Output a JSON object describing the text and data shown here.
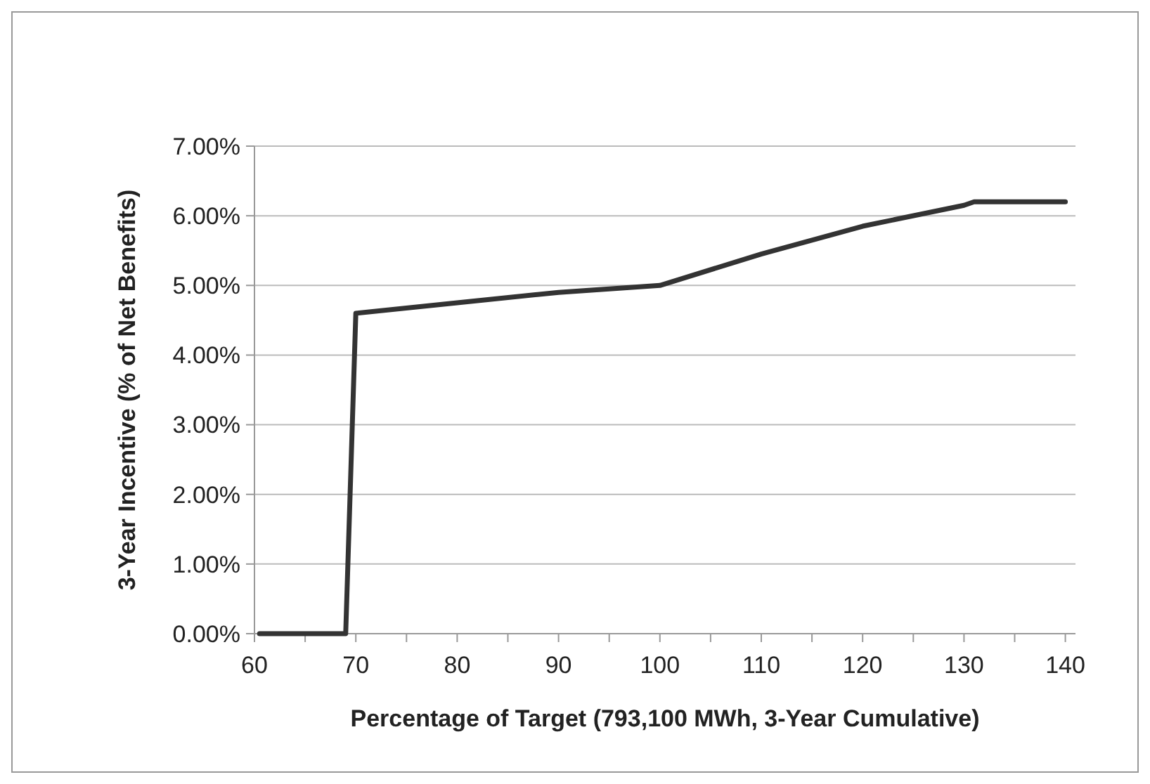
{
  "chart_data": {
    "type": "line",
    "xlabel": "Percentage of Target (793,100 MWh, 3-Year Cumulative)",
    "ylabel": "3-Year Incentive (% of Net Benefits)",
    "x": [
      60.5,
      69,
      70,
      80,
      90,
      100,
      110,
      120,
      130,
      131,
      140
    ],
    "series": [
      {
        "color": "#333333",
        "values": [
          0,
          0,
          4.6,
          4.75,
          4.9,
          5.0,
          5.45,
          5.85,
          6.15,
          6.2,
          6.2
        ]
      }
    ],
    "xlim": [
      60,
      141
    ],
    "xticks": [
      60,
      {
        "value": 65,
        "label": null
      },
      70,
      {
        "value": 75,
        "label": null
      },
      80,
      {
        "value": 85,
        "label": null
      },
      90,
      {
        "value": 95,
        "label": null
      },
      100,
      {
        "value": 105,
        "label": null
      },
      110,
      {
        "value": 115,
        "label": null
      },
      120,
      {
        "value": 125,
        "label": null
      },
      130,
      {
        "value": 135,
        "label": null
      },
      140
    ],
    "ylim": [
      0,
      7
    ],
    "yticks": [
      {
        "value": 0,
        "label": "0.00%"
      },
      {
        "value": 1,
        "label": "1.00%"
      },
      {
        "value": 2,
        "label": "2.00%"
      },
      {
        "value": 3,
        "label": "3.00%"
      },
      {
        "value": 4,
        "label": "4.00%"
      },
      {
        "value": 5,
        "label": "5.00%"
      },
      {
        "value": 6,
        "label": "6.00%"
      },
      {
        "value": 7,
        "label": "7.00%"
      }
    ],
    "grid": "y",
    "line_style": "solid",
    "marker": "none"
  }
}
